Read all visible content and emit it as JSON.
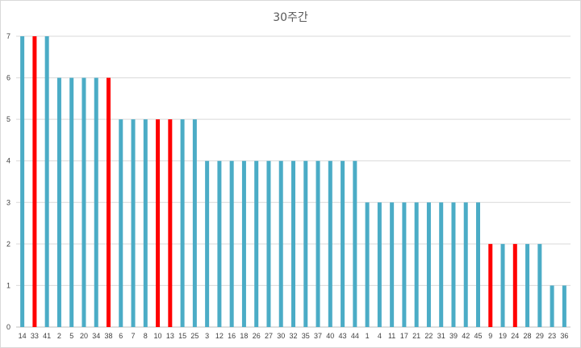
{
  "chart_data": {
    "type": "bar",
    "title": "30주간",
    "xlabel": "",
    "ylabel": "",
    "ylim": [
      0,
      7
    ],
    "yticks": [
      0,
      1,
      2,
      3,
      4,
      5,
      6,
      7
    ],
    "grid": true,
    "legend": "none",
    "categories": [
      "14",
      "33",
      "41",
      "2",
      "5",
      "20",
      "34",
      "38",
      "6",
      "7",
      "8",
      "10",
      "13",
      "15",
      "25",
      "3",
      "12",
      "16",
      "18",
      "26",
      "27",
      "30",
      "32",
      "35",
      "37",
      "40",
      "43",
      "44",
      "1",
      "4",
      "11",
      "17",
      "21",
      "22",
      "31",
      "39",
      "42",
      "45",
      "9",
      "19",
      "24",
      "28",
      "29",
      "23",
      "36"
    ],
    "values": [
      7,
      7,
      7,
      6,
      6,
      6,
      6,
      6,
      5,
      5,
      5,
      5,
      5,
      5,
      5,
      4,
      4,
      4,
      4,
      4,
      4,
      4,
      4,
      4,
      4,
      4,
      4,
      4,
      3,
      3,
      3,
      3,
      3,
      3,
      3,
      3,
      3,
      3,
      2,
      2,
      2,
      2,
      2,
      1,
      1
    ],
    "highlighted": [
      "33",
      "38",
      "10",
      "13",
      "9",
      "24"
    ],
    "colors": {
      "bar": "#4BACC6",
      "highlight": "#FF0000",
      "grid": "#D9D9D9",
      "axis": "#BFBFBF"
    }
  }
}
